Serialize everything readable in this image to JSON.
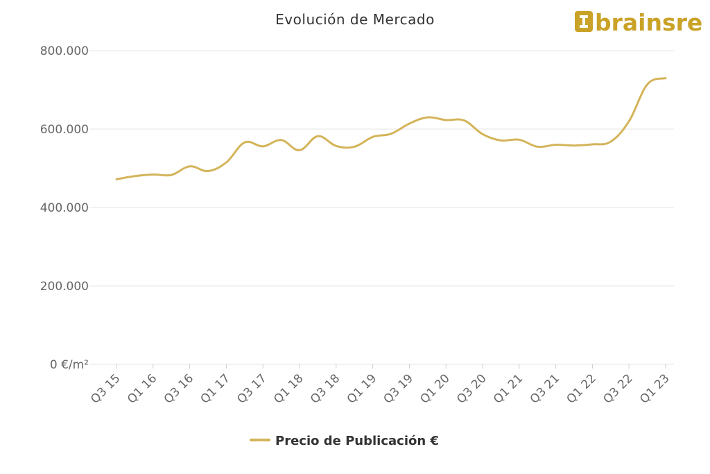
{
  "chart_data": {
    "type": "line",
    "title": "Evolución de Mercado",
    "xlabel": "",
    "ylabel": "",
    "ylim": [
      0,
      800000
    ],
    "yticks": [
      0,
      200000,
      400000,
      600000,
      800000
    ],
    "ytick_labels": [
      "0 €/m²",
      "200.000",
      "400.000",
      "600.000",
      "800.000"
    ],
    "x": [
      "Q3 15",
      "Q4 15",
      "Q1 16",
      "Q2 16",
      "Q3 16",
      "Q4 16",
      "Q1 17",
      "Q2 17",
      "Q3 17",
      "Q4 17",
      "Q1 18",
      "Q2 18",
      "Q3 18",
      "Q4 18",
      "Q1 19",
      "Q2 19",
      "Q3 19",
      "Q4 19",
      "Q1 20",
      "Q2 20",
      "Q3 20",
      "Q4 20",
      "Q1 21",
      "Q2 21",
      "Q3 21",
      "Q4 21",
      "Q1 22",
      "Q2 22",
      "Q3 22",
      "Q4 22",
      "Q1 23"
    ],
    "xtick_labels": [
      "Q3 15",
      "Q1 16",
      "Q3 16",
      "Q1 17",
      "Q3 17",
      "Q1 18",
      "Q3 18",
      "Q1 19",
      "Q3 19",
      "Q1 20",
      "Q3 20",
      "Q1 21",
      "Q3 21",
      "Q1 22",
      "Q3 22",
      "Q1 23"
    ],
    "series": [
      {
        "name": "Precio de Publicación €",
        "color": "#d4b45a",
        "values": [
          472000,
          480000,
          484000,
          483000,
          505000,
          493000,
          515000,
          566000,
          556000,
          572000,
          546000,
          582000,
          557000,
          555000,
          580000,
          588000,
          614000,
          630000,
          623000,
          622000,
          587000,
          571000,
          573000,
          555000,
          560000,
          558000,
          561000,
          568000,
          620000,
          714000,
          730000
        ]
      }
    ],
    "grid": true,
    "legend_position": "bottom-center"
  },
  "branding": {
    "logo_text": "brainsre",
    "logo_icon": "brainsre-logo-icon",
    "logo_color": "#c9a227"
  }
}
